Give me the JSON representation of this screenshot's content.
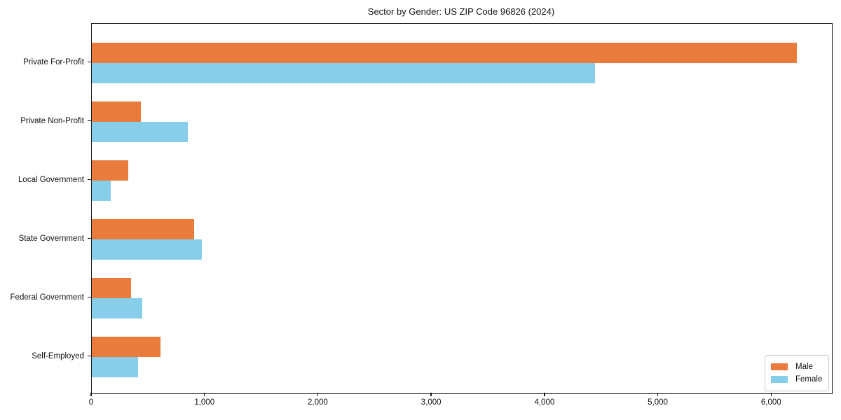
{
  "title": "Sector by Gender: US ZIP Code 96826 (2024)",
  "legend": {
    "entries": [
      "Male",
      "Female"
    ]
  },
  "chart_data": {
    "type": "bar",
    "orientation": "horizontal",
    "title": "Sector by Gender: US ZIP Code 96826 (2024)",
    "categories": [
      "Private For-Profit",
      "Private Non-Profit",
      "Local Government",
      "State Government",
      "Federal Government",
      "Self-Employed"
    ],
    "series": [
      {
        "name": "Male",
        "color": "#E97B3D",
        "values": [
          6220,
          433,
          322,
          901,
          346,
          604
        ]
      },
      {
        "name": "Female",
        "color": "#87CEEB",
        "values": [
          4440,
          846,
          168,
          969,
          446,
          406
        ]
      }
    ],
    "xlabel": "",
    "ylabel": "",
    "xlim": [
      0,
      6530
    ],
    "xticks": [
      0,
      1000,
      2000,
      3000,
      4000,
      5000,
      6000
    ],
    "xtick_labels": [
      "0",
      "1,000",
      "2,000",
      "3,000",
      "4,000",
      "5,000",
      "6,000"
    ],
    "grid": false,
    "legend_position": "lower right",
    "spines": "box",
    "background": "#ffffff"
  }
}
